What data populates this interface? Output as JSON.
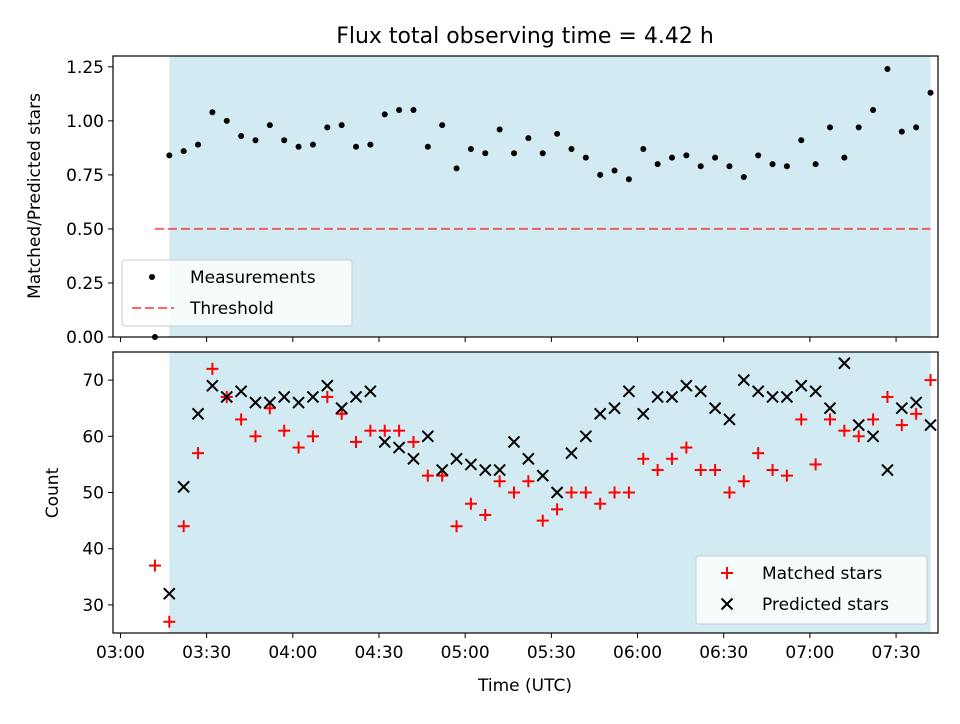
{
  "title": "Flux total observing time = 4.42 h",
  "colors": {
    "shade": "#add8e6",
    "threshold": "#ff0000",
    "measurement": "#000000",
    "matched": "#ff0000",
    "predicted": "#000000"
  },
  "chart_data": [
    {
      "type": "scatter",
      "ylabel": "Matched/Predicted stars",
      "ylim": [
        0,
        1.3
      ],
      "yticks": [
        "0.00",
        "0.25",
        "0.50",
        "0.75",
        "1.00",
        "1.25"
      ],
      "shaded_span": [
        "03:17",
        "07:42"
      ],
      "legend": {
        "position": "lower-left",
        "entries": [
          "Measurements",
          "Threshold"
        ]
      },
      "threshold": {
        "name": "Threshold",
        "value": 0.5,
        "x_range": [
          "03:12",
          "07:42"
        ]
      },
      "series": [
        {
          "name": "Measurements",
          "x": [
            "03:12",
            "03:17",
            "03:22",
            "03:27",
            "03:32",
            "03:37",
            "03:42",
            "03:47",
            "03:52",
            "03:57",
            "04:02",
            "04:07",
            "04:12",
            "04:17",
            "04:22",
            "04:27",
            "04:32",
            "04:37",
            "04:42",
            "04:47",
            "04:52",
            "04:57",
            "05:02",
            "05:07",
            "05:12",
            "05:17",
            "05:22",
            "05:27",
            "05:32",
            "05:37",
            "05:42",
            "05:47",
            "05:52",
            "05:57",
            "06:02",
            "06:07",
            "06:12",
            "06:17",
            "06:22",
            "06:27",
            "06:32",
            "06:37",
            "06:42",
            "06:47",
            "06:52",
            "06:57",
            "07:02",
            "07:07",
            "07:12",
            "07:17",
            "07:22",
            "07:27",
            "07:32",
            "07:37",
            "07:42"
          ],
          "y": [
            0.0,
            0.84,
            0.86,
            0.89,
            1.04,
            1.0,
            0.93,
            0.91,
            0.98,
            0.91,
            0.88,
            0.89,
            0.97,
            0.98,
            0.88,
            0.89,
            1.03,
            1.05,
            1.05,
            0.88,
            0.98,
            0.78,
            0.87,
            0.85,
            0.96,
            0.85,
            0.92,
            0.85,
            0.94,
            0.87,
            0.83,
            0.75,
            0.77,
            0.73,
            0.87,
            0.8,
            0.83,
            0.84,
            0.79,
            0.83,
            0.79,
            0.74,
            0.84,
            0.8,
            0.79,
            0.91,
            0.8,
            0.97,
            0.83,
            0.97,
            1.05,
            1.24,
            0.95,
            0.97,
            1.13
          ]
        }
      ]
    },
    {
      "type": "scatter",
      "xlabel": "Time (UTC)",
      "ylabel": "Count",
      "ylim": [
        25,
        75
      ],
      "yticks": [
        "30",
        "40",
        "50",
        "60",
        "70"
      ],
      "xticks": [
        "03:00",
        "03:30",
        "04:00",
        "04:30",
        "05:00",
        "05:30",
        "06:00",
        "06:30",
        "07:00",
        "07:30"
      ],
      "shaded_span": [
        "03:17",
        "07:42"
      ],
      "legend": {
        "position": "lower-right",
        "entries": [
          "Matched stars",
          "Predicted stars"
        ]
      },
      "series": [
        {
          "name": "Matched stars",
          "x": [
            "03:12",
            "03:17",
            "03:22",
            "03:27",
            "03:32",
            "03:37",
            "03:42",
            "03:47",
            "03:52",
            "03:57",
            "04:02",
            "04:07",
            "04:12",
            "04:17",
            "04:22",
            "04:27",
            "04:32",
            "04:37",
            "04:42",
            "04:47",
            "04:52",
            "04:57",
            "05:02",
            "05:07",
            "05:12",
            "05:17",
            "05:22",
            "05:27",
            "05:32",
            "05:37",
            "05:42",
            "05:47",
            "05:52",
            "05:57",
            "06:02",
            "06:07",
            "06:12",
            "06:17",
            "06:22",
            "06:27",
            "06:32",
            "06:37",
            "06:42",
            "06:47",
            "06:52",
            "06:57",
            "07:02",
            "07:07",
            "07:12",
            "07:17",
            "07:22",
            "07:27",
            "07:32",
            "07:37",
            "07:42"
          ],
          "y": [
            37,
            27,
            44,
            57,
            72,
            67,
            63,
            60,
            65,
            61,
            58,
            60,
            67,
            64,
            59,
            61,
            61,
            61,
            59,
            53,
            53,
            44,
            48,
            46,
            52,
            50,
            52,
            45,
            47,
            50,
            50,
            48,
            50,
            50,
            56,
            54,
            56,
            58,
            54,
            54,
            50,
            52,
            57,
            54,
            53,
            63,
            55,
            63,
            61,
            60,
            63,
            67,
            62,
            64,
            70
          ]
        },
        {
          "name": "Predicted stars",
          "x": [
            "03:17",
            "03:22",
            "03:27",
            "03:32",
            "03:37",
            "03:42",
            "03:47",
            "03:52",
            "03:57",
            "04:02",
            "04:07",
            "04:12",
            "04:17",
            "04:22",
            "04:27",
            "04:32",
            "04:37",
            "04:42",
            "04:47",
            "04:52",
            "04:57",
            "05:02",
            "05:07",
            "05:12",
            "05:17",
            "05:22",
            "05:27",
            "05:32",
            "05:37",
            "05:42",
            "05:47",
            "05:52",
            "05:57",
            "06:02",
            "06:07",
            "06:12",
            "06:17",
            "06:22",
            "06:27",
            "06:32",
            "06:37",
            "06:42",
            "06:47",
            "06:52",
            "06:57",
            "07:02",
            "07:07",
            "07:12",
            "07:17",
            "07:22",
            "07:27",
            "07:32",
            "07:37",
            "07:42"
          ],
          "y": [
            32,
            51,
            64,
            69,
            67,
            68,
            66,
            66,
            67,
            66,
            67,
            69,
            65,
            67,
            68,
            59,
            58,
            56,
            60,
            54,
            56,
            55,
            54,
            54,
            59,
            56,
            53,
            50,
            57,
            60,
            64,
            65,
            68,
            64,
            67,
            67,
            69,
            68,
            65,
            63,
            70,
            68,
            67,
            67,
            69,
            68,
            65,
            73,
            62,
            60,
            54,
            65,
            66,
            62
          ]
        }
      ]
    }
  ]
}
